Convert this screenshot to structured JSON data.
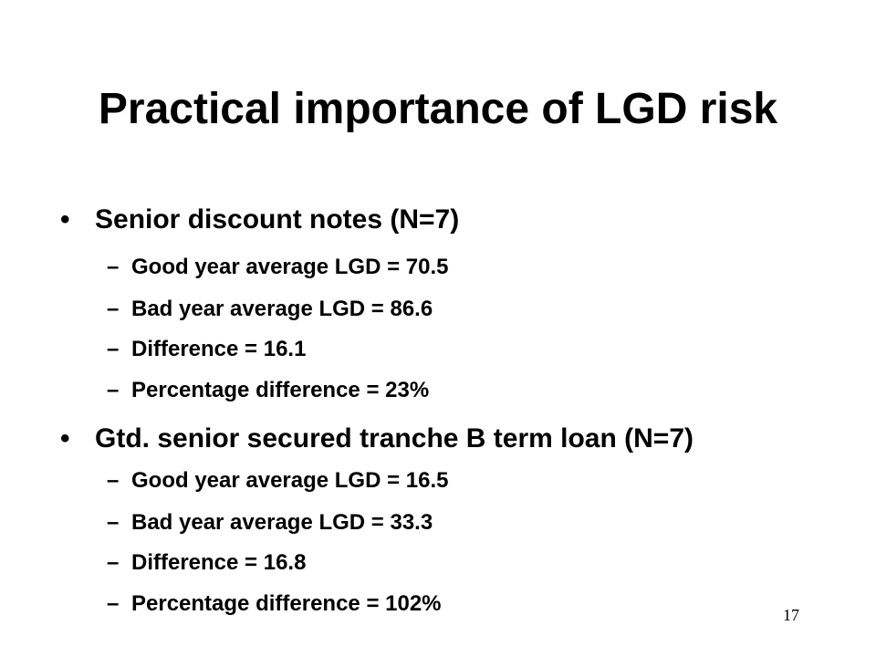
{
  "slide": {
    "title": "Practical importance of LGD risk",
    "page_number": "17",
    "bullet_marker": "•",
    "sub_marker": "–",
    "sections": [
      {
        "heading": "Senior discount notes (N=7)",
        "items": [
          "Good year average LGD = 70.5",
          "Bad year average LGD = 86.6",
          "Difference = 16.1",
          "Percentage difference = 23%"
        ]
      },
      {
        "heading": "Gtd. senior secured tranche B term loan (N=7)",
        "items": [
          "Good year average LGD = 16.5",
          "Bad year average LGD = 33.3",
          "Difference = 16.8",
          "Percentage difference = 102%"
        ]
      }
    ]
  }
}
